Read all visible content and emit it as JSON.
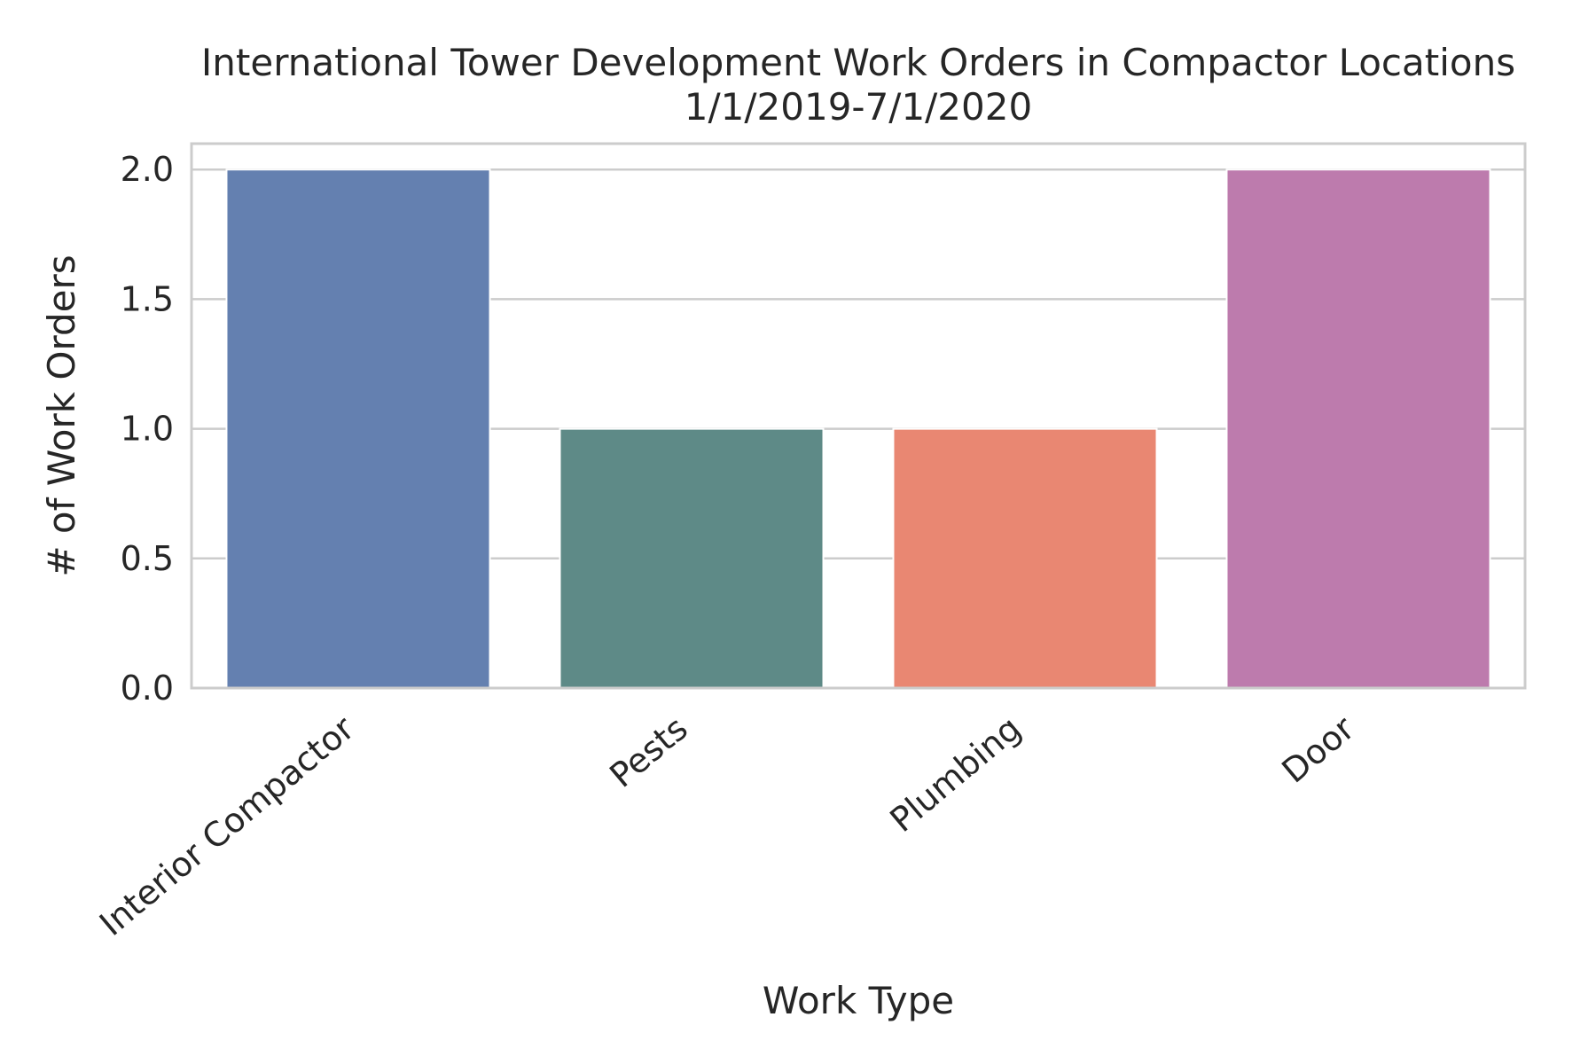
{
  "chart_data": {
    "type": "bar",
    "title": "International Tower Development Work Orders in Compactor Locations",
    "subtitle": "1/1/2019-7/1/2020",
    "xlabel": "Work Type",
    "ylabel": "# of Work Orders",
    "categories": [
      "Interior Compactor",
      "Pests",
      "Plumbing",
      "Door"
    ],
    "values": [
      2,
      1,
      1,
      2
    ],
    "colors": [
      "#6480b0",
      "#5e8a87",
      "#e98772",
      "#bd7bad"
    ],
    "ylim": [
      0,
      2.1
    ],
    "yticks": [
      "0.0",
      "0.5",
      "1.0",
      "1.5",
      "2.0"
    ],
    "grid": true,
    "legend": "none"
  }
}
